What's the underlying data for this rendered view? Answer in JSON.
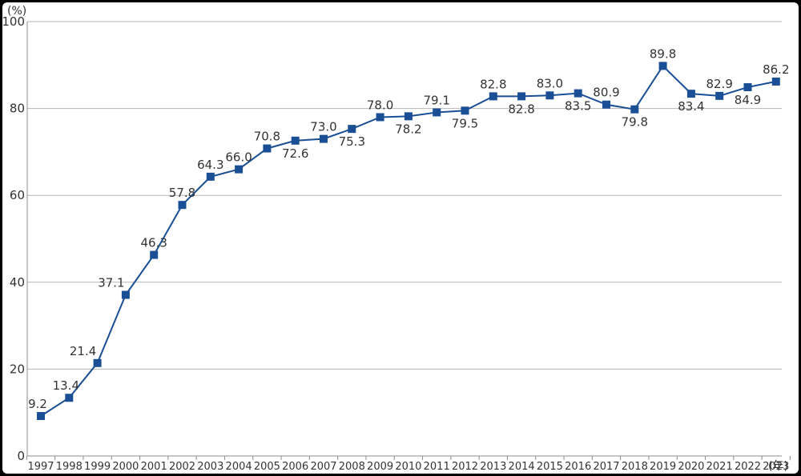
{
  "chart_data": {
    "type": "line",
    "title": "",
    "ylabel": "(%)",
    "xlabel": "(年)",
    "ylim": [
      0,
      100
    ],
    "yticks": [
      0,
      20,
      40,
      60,
      80,
      100
    ],
    "grid": true,
    "line_color": "#1a4e95",
    "marker": "square",
    "x": [
      "1997",
      "1998",
      "1999",
      "2000",
      "2001",
      "2002",
      "2003",
      "2004",
      "2005",
      "2006",
      "2007",
      "2008",
      "2009",
      "2010",
      "2011",
      "2012",
      "2013",
      "2014",
      "2015",
      "2016",
      "2017",
      "2018",
      "2019",
      "2020",
      "2021",
      "2022",
      "2023"
    ],
    "values": [
      9.2,
      13.4,
      21.4,
      37.1,
      46.3,
      57.8,
      64.3,
      66.0,
      70.8,
      72.6,
      73.0,
      75.3,
      78.0,
      78.2,
      79.1,
      79.5,
      82.8,
      82.8,
      83.0,
      83.5,
      80.9,
      79.8,
      89.8,
      83.4,
      82.9,
      84.9,
      86.2
    ],
    "labels": [
      "9.2",
      "13.4",
      "21.4",
      "37.1",
      "46.3",
      "57.8",
      "64.3",
      "66.0",
      "70.8",
      "72.6",
      "73.0",
      "75.3",
      "78.0",
      "78.2",
      "79.1",
      "79.5",
      "82.8",
      "82.8",
      "83.0",
      "83.5",
      "80.9",
      "79.8",
      "89.8",
      "83.4",
      "82.9",
      "84.9",
      "86.2"
    ],
    "label_positions": [
      "above",
      "above",
      "above",
      "above",
      "above",
      "above",
      "above",
      "above",
      "above",
      "below",
      "above",
      "below",
      "above",
      "below",
      "above",
      "below",
      "above",
      "below",
      "above",
      "below",
      "above",
      "below",
      "above",
      "below",
      "above",
      "below",
      "above"
    ]
  }
}
